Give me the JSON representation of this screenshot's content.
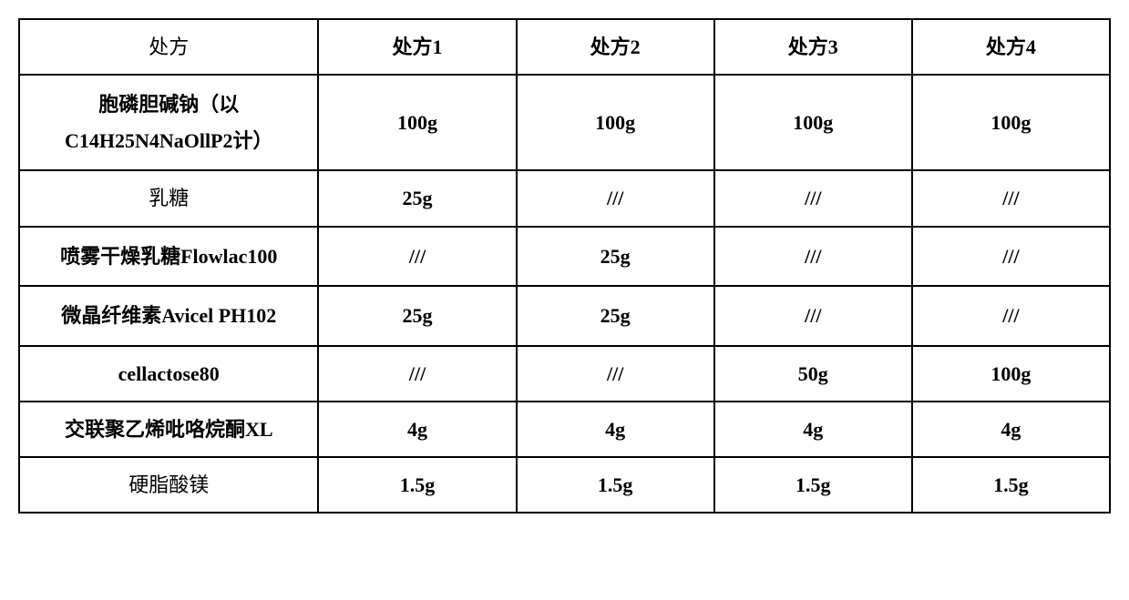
{
  "table": {
    "type": "table",
    "border_color": "#000000",
    "background_color": "#ffffff",
    "font_family": "SimSun",
    "cell_fontsize": 22,
    "header_fontweight": "normal",
    "data_fontweight": "bold",
    "columns": [
      {
        "label": "处方",
        "width_pct": 28
      },
      {
        "label": "处方1",
        "width_pct": 18
      },
      {
        "label": "处方2",
        "width_pct": 18
      },
      {
        "label": "处方3",
        "width_pct": 18
      },
      {
        "label": "处方4",
        "width_pct": 18
      }
    ],
    "rows": [
      {
        "label": "胞磷胆碱钠（以C14H25N4NaOllP2计）",
        "cells": [
          "100g",
          "100g",
          "100g",
          "100g"
        ]
      },
      {
        "label": "乳糖",
        "cells": [
          "25g",
          "///",
          "///",
          "///"
        ]
      },
      {
        "label": "喷雾干燥乳糖Flowlac100",
        "cells": [
          "///",
          "25g",
          "///",
          "///"
        ]
      },
      {
        "label": "微晶纤维素Avicel PH102",
        "cells": [
          "25g",
          "25g",
          "///",
          "///"
        ]
      },
      {
        "label": "cellactose80",
        "cells": [
          "///",
          "///",
          "50g",
          "100g"
        ]
      },
      {
        "label": "交联聚乙烯吡咯烷酮XL",
        "cells": [
          "4g",
          "4g",
          "4g",
          "4g"
        ]
      },
      {
        "label": "硬脂酸镁",
        "cells": [
          "1.5g",
          "1.5g",
          "1.5g",
          "1.5g"
        ]
      }
    ]
  }
}
